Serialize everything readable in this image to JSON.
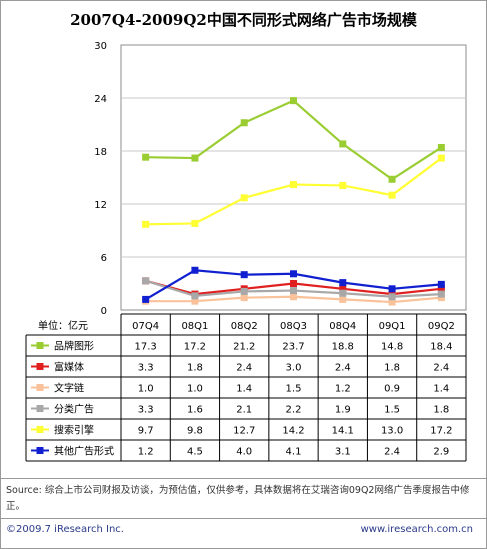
{
  "chart_data": {
    "type": "line",
    "title": "2007Q4-2009Q2中国不同形式网络广告市场规模",
    "unit_label": "单位：亿元",
    "categories": [
      "07Q4",
      "08Q1",
      "08Q2",
      "08Q3",
      "08Q4",
      "09Q1",
      "09Q2"
    ],
    "ylim": [
      0,
      30
    ],
    "yticks": [
      "0",
      "6",
      "12",
      "18",
      "24",
      "30"
    ],
    "grid": true,
    "series": [
      {
        "name": "品牌图形",
        "color": "#9acd32",
        "values": [
          17.3,
          17.2,
          21.2,
          23.7,
          18.8,
          14.8,
          18.4
        ],
        "labels": [
          "17.3",
          "17.2",
          "21.2",
          "23.7",
          "18.8",
          "14.8",
          "18.4"
        ]
      },
      {
        "name": "富媒体",
        "color": "#e02020",
        "values": [
          3.3,
          1.8,
          2.4,
          3.0,
          2.4,
          1.8,
          2.4
        ],
        "labels": [
          "3.3",
          "1.8",
          "2.4",
          "3.0",
          "2.4",
          "1.8",
          "2.4"
        ]
      },
      {
        "name": "文字链",
        "color": "#f9c29a",
        "values": [
          1.0,
          1.0,
          1.4,
          1.5,
          1.2,
          0.9,
          1.4
        ],
        "labels": [
          "1.0",
          "1.0",
          "1.4",
          "1.5",
          "1.2",
          "0.9",
          "1.4"
        ]
      },
      {
        "name": "分类广告",
        "color": "#a8a8a8",
        "values": [
          3.3,
          1.6,
          2.1,
          2.2,
          1.9,
          1.5,
          1.8
        ],
        "labels": [
          "3.3",
          "1.6",
          "2.1",
          "2.2",
          "1.9",
          "1.5",
          "1.8"
        ]
      },
      {
        "name": "搜索引擎",
        "color": "#ffff33",
        "values": [
          9.7,
          9.8,
          12.7,
          14.2,
          14.1,
          13.0,
          17.2
        ],
        "labels": [
          "9.7",
          "9.8",
          "12.7",
          "14.2",
          "14.1",
          "13.0",
          "17.2"
        ]
      },
      {
        "name": "其他广告形式",
        "color": "#1020d0",
        "values": [
          1.2,
          4.5,
          4.0,
          4.1,
          3.1,
          2.4,
          2.9
        ],
        "labels": [
          "1.2",
          "4.5",
          "4.0",
          "4.1",
          "3.1",
          "2.4",
          "2.9"
        ]
      }
    ]
  },
  "source_text": "Source: 综合上市公司财报及访谈，为预估值，仅供参考，具体数据将在艾瑞咨询09Q2网络广告季度报告中修正。",
  "footer_left": "©2009.7 iResearch Inc.",
  "footer_right": "www.iresearch.com.cn"
}
